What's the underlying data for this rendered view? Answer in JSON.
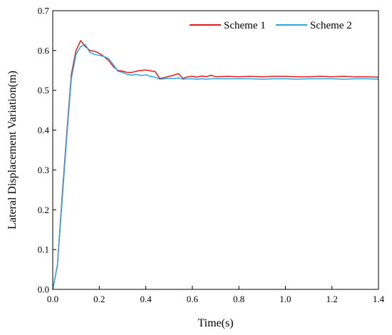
{
  "chart_data": {
    "type": "line",
    "title": "",
    "xlabel": "Time(s)",
    "ylabel": "Lateral Displacement Variation(m)",
    "xlim": [
      0,
      1.4
    ],
    "ylim": [
      0,
      0.7
    ],
    "xticks": [
      "0.0",
      "0.2",
      "0.4",
      "0.6",
      "0.8",
      "1.0",
      "1.2",
      "1.4"
    ],
    "yticks": [
      "0.0",
      "0.1",
      "0.2",
      "0.3",
      "0.4",
      "0.5",
      "0.6",
      "0.7"
    ],
    "grid": false,
    "legend_position": "top-right",
    "series": [
      {
        "name": "Scheme 1",
        "color": "#e41a1c",
        "x": [
          0,
          0.02,
          0.04,
          0.06,
          0.08,
          0.1,
          0.12,
          0.14,
          0.16,
          0.18,
          0.2,
          0.22,
          0.24,
          0.26,
          0.28,
          0.3,
          0.32,
          0.34,
          0.36,
          0.38,
          0.4,
          0.42,
          0.44,
          0.46,
          0.48,
          0.5,
          0.52,
          0.54,
          0.56,
          0.58,
          0.6,
          0.62,
          0.64,
          0.66,
          0.68,
          0.7,
          0.75,
          0.8,
          0.85,
          0.9,
          0.95,
          1.0,
          1.05,
          1.1,
          1.15,
          1.2,
          1.25,
          1.3,
          1.35,
          1.4
        ],
        "y": [
          0.0,
          0.06,
          0.23,
          0.39,
          0.54,
          0.6,
          0.625,
          0.61,
          0.6,
          0.598,
          0.593,
          0.585,
          0.575,
          0.56,
          0.55,
          0.548,
          0.545,
          0.545,
          0.548,
          0.55,
          0.551,
          0.549,
          0.547,
          0.53,
          0.532,
          0.535,
          0.538,
          0.542,
          0.53,
          0.534,
          0.535,
          0.533,
          0.536,
          0.534,
          0.538,
          0.534,
          0.535,
          0.534,
          0.535,
          0.534,
          0.535,
          0.535,
          0.534,
          0.534,
          0.535,
          0.534,
          0.535,
          0.534,
          0.534,
          0.533
        ]
      },
      {
        "name": "Scheme 2",
        "color": "#29a8e0",
        "x": [
          0,
          0.02,
          0.04,
          0.06,
          0.08,
          0.1,
          0.12,
          0.14,
          0.16,
          0.18,
          0.2,
          0.22,
          0.24,
          0.26,
          0.28,
          0.3,
          0.32,
          0.34,
          0.36,
          0.38,
          0.4,
          0.42,
          0.44,
          0.46,
          0.48,
          0.5,
          0.52,
          0.54,
          0.56,
          0.58,
          0.6,
          0.62,
          0.64,
          0.66,
          0.68,
          0.7,
          0.75,
          0.8,
          0.85,
          0.9,
          0.95,
          1.0,
          1.05,
          1.1,
          1.15,
          1.2,
          1.25,
          1.3,
          1.35,
          1.4
        ],
        "y": [
          0.0,
          0.06,
          0.22,
          0.38,
          0.53,
          0.59,
          0.61,
          0.615,
          0.595,
          0.59,
          0.588,
          0.585,
          0.58,
          0.565,
          0.548,
          0.545,
          0.54,
          0.538,
          0.54,
          0.537,
          0.539,
          0.535,
          0.533,
          0.528,
          0.529,
          0.53,
          0.53,
          0.531,
          0.528,
          0.529,
          0.529,
          0.528,
          0.529,
          0.528,
          0.529,
          0.529,
          0.529,
          0.529,
          0.529,
          0.528,
          0.529,
          0.529,
          0.528,
          0.529,
          0.529,
          0.529,
          0.528,
          0.529,
          0.529,
          0.528
        ]
      }
    ]
  }
}
